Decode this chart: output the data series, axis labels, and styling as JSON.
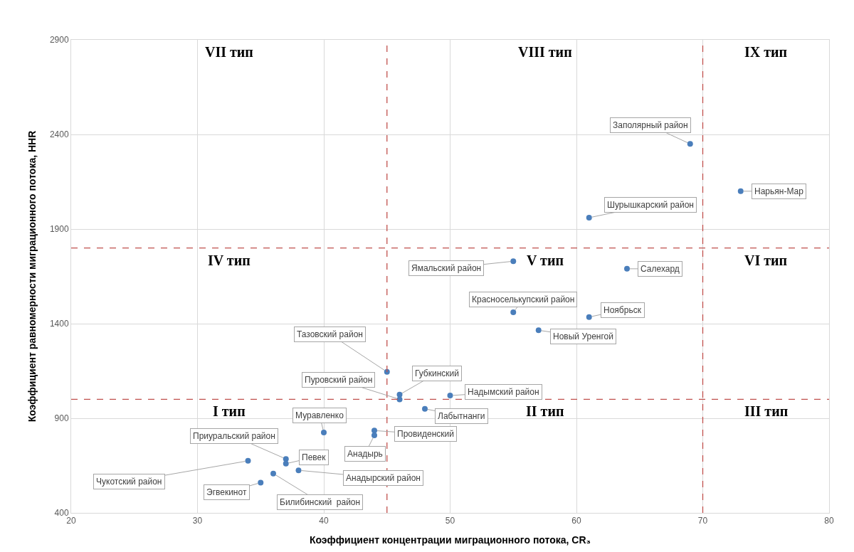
{
  "chart_data": {
    "type": "scatter",
    "xlabel": "Коэффициент концентрации миграционного потока, CR₃",
    "ylabel": "Коэффициент равномерности миграционного потока, HHR",
    "x": [
      69,
      73,
      61,
      55,
      64,
      55,
      61,
      57,
      45,
      46,
      46,
      50,
      48,
      40,
      44,
      44,
      37,
      37,
      34,
      38,
      36,
      35
    ],
    "series": [
      {
        "color": "#4a7ebb",
        "values": [
          2350,
          2100,
          1960,
          1730,
          1690,
          1460,
          1435,
          1365,
          1145,
          1025,
          1000,
          1020,
          950,
          825,
          835,
          810,
          685,
          660,
          675,
          625,
          608,
          560
        ]
      }
    ],
    "xlim": [
      20,
      80
    ],
    "xticks": [
      20,
      30,
      40,
      50,
      60,
      70,
      80
    ],
    "ylim": [
      400,
      2900
    ],
    "yticks": [
      400,
      900,
      1400,
      1900,
      2400,
      2900
    ],
    "grid": true,
    "marker": "circle",
    "ref_lines": [
      {
        "axis": "x",
        "value": 45,
        "color": "#c0504d",
        "line_style": "dashed"
      },
      {
        "axis": "x",
        "value": 70,
        "color": "#c0504d",
        "line_style": "dashed"
      },
      {
        "axis": "y",
        "value": 1800,
        "color": "#c0504d",
        "line_style": "dashed"
      },
      {
        "axis": "y",
        "value": 1000,
        "color": "#c0504d",
        "line_style": "dashed"
      }
    ],
    "annotations": [
      {
        "text": "Заполярный район",
        "x": 69,
        "y": 2350
      },
      {
        "text": "Нарьян-Мар",
        "x": 73,
        "y": 2100
      },
      {
        "text": "Шурышкарский район",
        "x": 61,
        "y": 1960
      },
      {
        "text": "Ямальский район",
        "x": 55,
        "y": 1730
      },
      {
        "text": "Салехард",
        "x": 64,
        "y": 1690
      },
      {
        "text": "Красноселькупский район",
        "x": 55,
        "y": 1460
      },
      {
        "text": "Ноябрьск",
        "x": 61,
        "y": 1435
      },
      {
        "text": "Новый Уренгой",
        "x": 57,
        "y": 1365
      },
      {
        "text": "Тазовский район",
        "x": 45,
        "y": 1145
      },
      {
        "text": "Губкинский",
        "x": 46,
        "y": 1025
      },
      {
        "text": "Пуровский район",
        "x": 46,
        "y": 1000
      },
      {
        "text": "Надымский район",
        "x": 50,
        "y": 1020
      },
      {
        "text": "Лабытнанги",
        "x": 48,
        "y": 950
      },
      {
        "text": "Муравленко",
        "x": 40,
        "y": 825
      },
      {
        "text": "Провиденский",
        "x": 44,
        "y": 835
      },
      {
        "text": "Анадырь",
        "x": 44,
        "y": 810
      },
      {
        "text": "Приуральский район",
        "x": 37,
        "y": 685
      },
      {
        "text": "Певек",
        "x": 37,
        "y": 660
      },
      {
        "text": "Чукотский район",
        "x": 34,
        "y": 675
      },
      {
        "text": "Анадырский район",
        "x": 38,
        "y": 625
      },
      {
        "text": "Билибинский  район",
        "x": 36,
        "y": 608
      },
      {
        "text": "Эгвекинот",
        "x": 35,
        "y": 560
      },
      "VII тип",
      "VIII тип",
      "IX тип",
      "IV тип",
      "V тип",
      "VI тип",
      "I тип",
      "II тип",
      "III тип"
    ]
  }
}
